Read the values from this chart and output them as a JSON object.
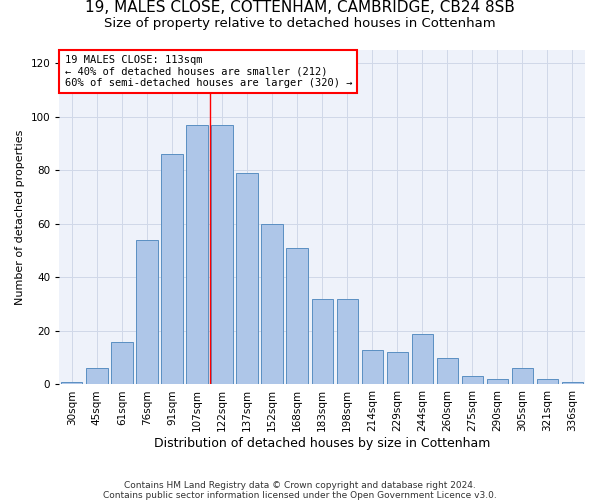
{
  "title1": "19, MALES CLOSE, COTTENHAM, CAMBRIDGE, CB24 8SB",
  "title2": "Size of property relative to detached houses in Cottenham",
  "xlabel": "Distribution of detached houses by size in Cottenham",
  "ylabel": "Number of detached properties",
  "categories": [
    "30sqm",
    "45sqm",
    "61sqm",
    "76sqm",
    "91sqm",
    "107sqm",
    "122sqm",
    "137sqm",
    "152sqm",
    "168sqm",
    "183sqm",
    "198sqm",
    "214sqm",
    "229sqm",
    "244sqm",
    "260sqm",
    "275sqm",
    "290sqm",
    "305sqm",
    "321sqm",
    "336sqm"
  ],
  "values": [
    1,
    6,
    16,
    54,
    86,
    97,
    97,
    79,
    60,
    51,
    32,
    32,
    13,
    12,
    19,
    10,
    3,
    2,
    6,
    2,
    1
  ],
  "bar_color": "#aec6e8",
  "bar_edge_color": "#5a8fc2",
  "vline_x_index": 5.5,
  "annotation_text_line1": "19 MALES CLOSE: 113sqm",
  "annotation_text_line2": "← 40% of detached houses are smaller (212)",
  "annotation_text_line3": "60% of semi-detached houses are larger (320) →",
  "annotation_box_color": "white",
  "annotation_box_edge_color": "red",
  "vline_color": "red",
  "ylim": [
    0,
    125
  ],
  "yticks": [
    0,
    20,
    40,
    60,
    80,
    100,
    120
  ],
  "grid_color": "#d0d8e8",
  "background_color": "#eef2fa",
  "footer1": "Contains HM Land Registry data © Crown copyright and database right 2024.",
  "footer2": "Contains public sector information licensed under the Open Government Licence v3.0.",
  "title1_fontsize": 11,
  "title2_fontsize": 9.5,
  "tick_fontsize": 7.5,
  "ylabel_fontsize": 8,
  "xlabel_fontsize": 9,
  "footer_fontsize": 6.5
}
